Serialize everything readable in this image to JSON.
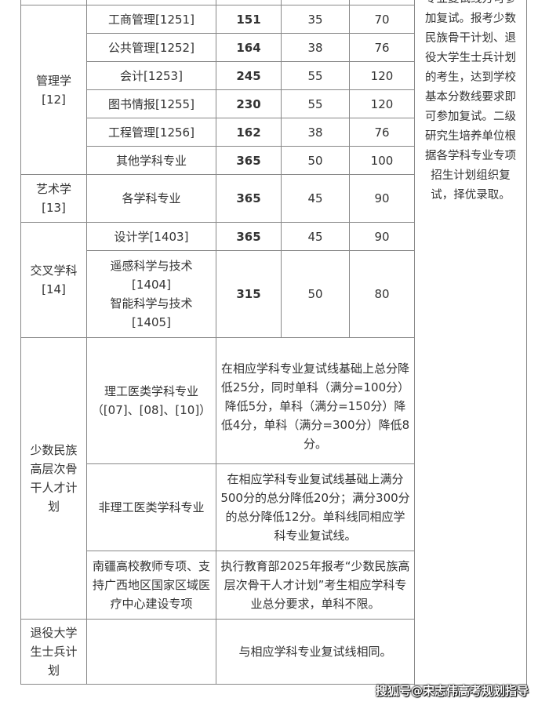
{
  "rows": {
    "mgmt": {
      "category": "管理学\n[12]",
      "items": [
        {
          "major": "工商管理[1251]",
          "total": "151",
          "s1": "35",
          "s2": "70"
        },
        {
          "major": "公共管理[1252]",
          "total": "164",
          "s1": "38",
          "s2": "76"
        },
        {
          "major": "会计[1253]",
          "total": "245",
          "s1": "55",
          "s2": "120"
        },
        {
          "major": "图书情报[1255]",
          "total": "230",
          "s1": "55",
          "s2": "120"
        },
        {
          "major": "工程管理[1256]",
          "total": "162",
          "s1": "38",
          "s2": "76"
        },
        {
          "major": "其他学科专业",
          "total": "365",
          "s1": "50",
          "s2": "100"
        }
      ]
    },
    "art": {
      "category": "艺术学\n[13]",
      "major": "各学科专业",
      "total": "365",
      "s1": "45",
      "s2": "90"
    },
    "cross": {
      "category": "交叉学科\n[14]",
      "items": [
        {
          "major": "设计学[1403]",
          "total": "365",
          "s1": "45",
          "s2": "90"
        },
        {
          "major": "遥感科学与技术\n[1404]\n智能科学与技术\n[1405]",
          "total": "315",
          "s1": "50",
          "s2": "80"
        }
      ]
    },
    "minority": {
      "category": "少数民族\n高层次骨\n干人才计\n划",
      "items": [
        {
          "major": "理工医类学科专业\n（[07]、[08]、[10]）",
          "rule": "在相应学科专业复试线基础上总分降低25分，同时单科（满分=100分）降低5分，单科（满分=150分）降低4分，单科（满分=300分）降低8分。"
        },
        {
          "major": "非理工医类学科专业",
          "rule": "在相应学科专业复试线基础上满分500分的总分降低20分；满分300分的总分降低12分。单科线同相应学科专业复试线。"
        },
        {
          "major": "南疆高校教师专项、支持广西地区国家区域医疗中心建设专项",
          "rule": "执行教育部2025年报考“少数民族高层次骨干人才计划”考生相应学科专业总分要求，单科不限。"
        }
      ]
    },
    "veteran": {
      "category": "退役大学\n生士兵计\n划",
      "major": "",
      "rule": "与相应学科专业复试线相同。"
    }
  },
  "note": "专业复试线方可参加复试。报考少数民族骨干计划、退役大学生士兵计划的考生，达到学校基本分数线要求即可参加复试。二级研究生培养单位根据各学科专业专项招生计划组织复试，择优录取。",
  "watermark": "搜狐号@宋志伟高考规划指导"
}
